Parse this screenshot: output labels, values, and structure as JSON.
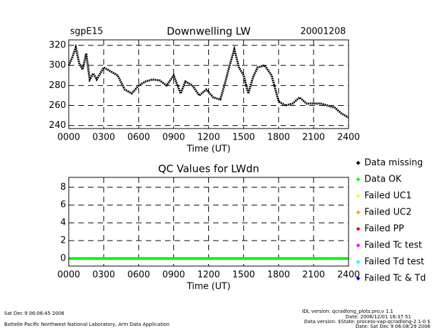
{
  "chart_data": [
    {
      "type": "line",
      "title": "Downwelling LW",
      "left_label": "sgpE15",
      "right_label": "20001208",
      "x_label": "Time (UT)",
      "x": [
        0,
        30,
        60,
        90,
        120,
        150,
        180,
        210,
        240,
        300,
        360,
        420,
        480,
        540,
        600,
        660,
        720,
        780,
        840,
        900,
        960,
        1000,
        1060,
        1120,
        1180,
        1240,
        1300,
        1340,
        1380,
        1420,
        1460,
        1500,
        1540,
        1580,
        1620,
        1680,
        1740,
        1800,
        1860,
        1920,
        1980,
        2040,
        2100,
        2160,
        2220,
        2280,
        2340,
        2400
      ],
      "series": [
        {
          "name": "Downwelling LW",
          "color": "#000000",
          "values": [
            300,
            308,
            318,
            302,
            296,
            312,
            286,
            292,
            286,
            298,
            294,
            290,
            276,
            272,
            280,
            284,
            286,
            285,
            280,
            290,
            272,
            284,
            280,
            270,
            276,
            268,
            266,
            282,
            300,
            316,
            298,
            290,
            272,
            288,
            298,
            300,
            290,
            264,
            260,
            262,
            268,
            262,
            262,
            262,
            260,
            258,
            252,
            248
          ]
        }
      ],
      "xlim": [
        0,
        2400
      ],
      "xticks": [
        {
          "value": 0,
          "label": "0000"
        },
        {
          "value": 300,
          "label": "0300"
        },
        {
          "value": 600,
          "label": "0600"
        },
        {
          "value": 900,
          "label": "0900"
        },
        {
          "value": 1200,
          "label": "1200"
        },
        {
          "value": 1500,
          "label": "1500"
        },
        {
          "value": 1800,
          "label": "1800"
        },
        {
          "value": 2100,
          "label": "2100"
        },
        {
          "value": 2400,
          "label": "2400"
        }
      ],
      "ylim": [
        237,
        325.5
      ],
      "yticks": [
        240,
        260,
        280,
        300,
        320
      ],
      "grid": true
    },
    {
      "type": "line",
      "title": "QC Values for LWdn",
      "x_label": "Time (UT)",
      "x": [
        0,
        2400
      ],
      "series": [
        {
          "name": "Data missing",
          "color": "#000000",
          "values": [
            null,
            null
          ]
        },
        {
          "name": "Data OK",
          "color": "#00ff00",
          "values": [
            0,
            0
          ]
        },
        {
          "name": "Failed UC1",
          "color": "#ffff00",
          "values": [
            null,
            null
          ]
        },
        {
          "name": "Failed UC2",
          "color": "#ffa500",
          "values": [
            null,
            null
          ]
        },
        {
          "name": "Failed PP",
          "color": "#ff0000",
          "values": [
            null,
            null
          ]
        },
        {
          "name": "Failed Tc test",
          "color": "#ff00ff",
          "values": [
            null,
            null
          ]
        },
        {
          "name": "Failed Td test",
          "color": "#00ffff",
          "values": [
            null,
            null
          ]
        },
        {
          "name": "Failed Tc & Td",
          "color": "#0000ff",
          "values": [
            null,
            null
          ]
        }
      ],
      "xlim": [
        0,
        2400
      ],
      "xticks": [
        {
          "value": 0,
          "label": "0000"
        },
        {
          "value": 300,
          "label": "0300"
        },
        {
          "value": 600,
          "label": "0600"
        },
        {
          "value": 900,
          "label": "0900"
        },
        {
          "value": 1200,
          "label": "1200"
        },
        {
          "value": 1500,
          "label": "1500"
        },
        {
          "value": 1800,
          "label": "1800"
        },
        {
          "value": 2100,
          "label": "2100"
        },
        {
          "value": 2400,
          "label": "2400"
        }
      ],
      "ylim": [
        -0.85,
        9.1
      ],
      "yticks": [
        0,
        2,
        4,
        6,
        8
      ],
      "grid": true
    }
  ],
  "footer": {
    "left": [
      "Sat Dec  9 06:06:45 2006",
      "Battelle Pacific Northwest National Laboratory, Arm Data Application"
    ],
    "right": [
      "IDL version: qcradlong_plots.pro,v 1.1",
      "Date: 2006/12/01 16:37:51",
      "Data version: $State: process-vap-qcradlong-2.1-0 $",
      "Date: Sat Dec  9 06:08:29 2006"
    ]
  }
}
